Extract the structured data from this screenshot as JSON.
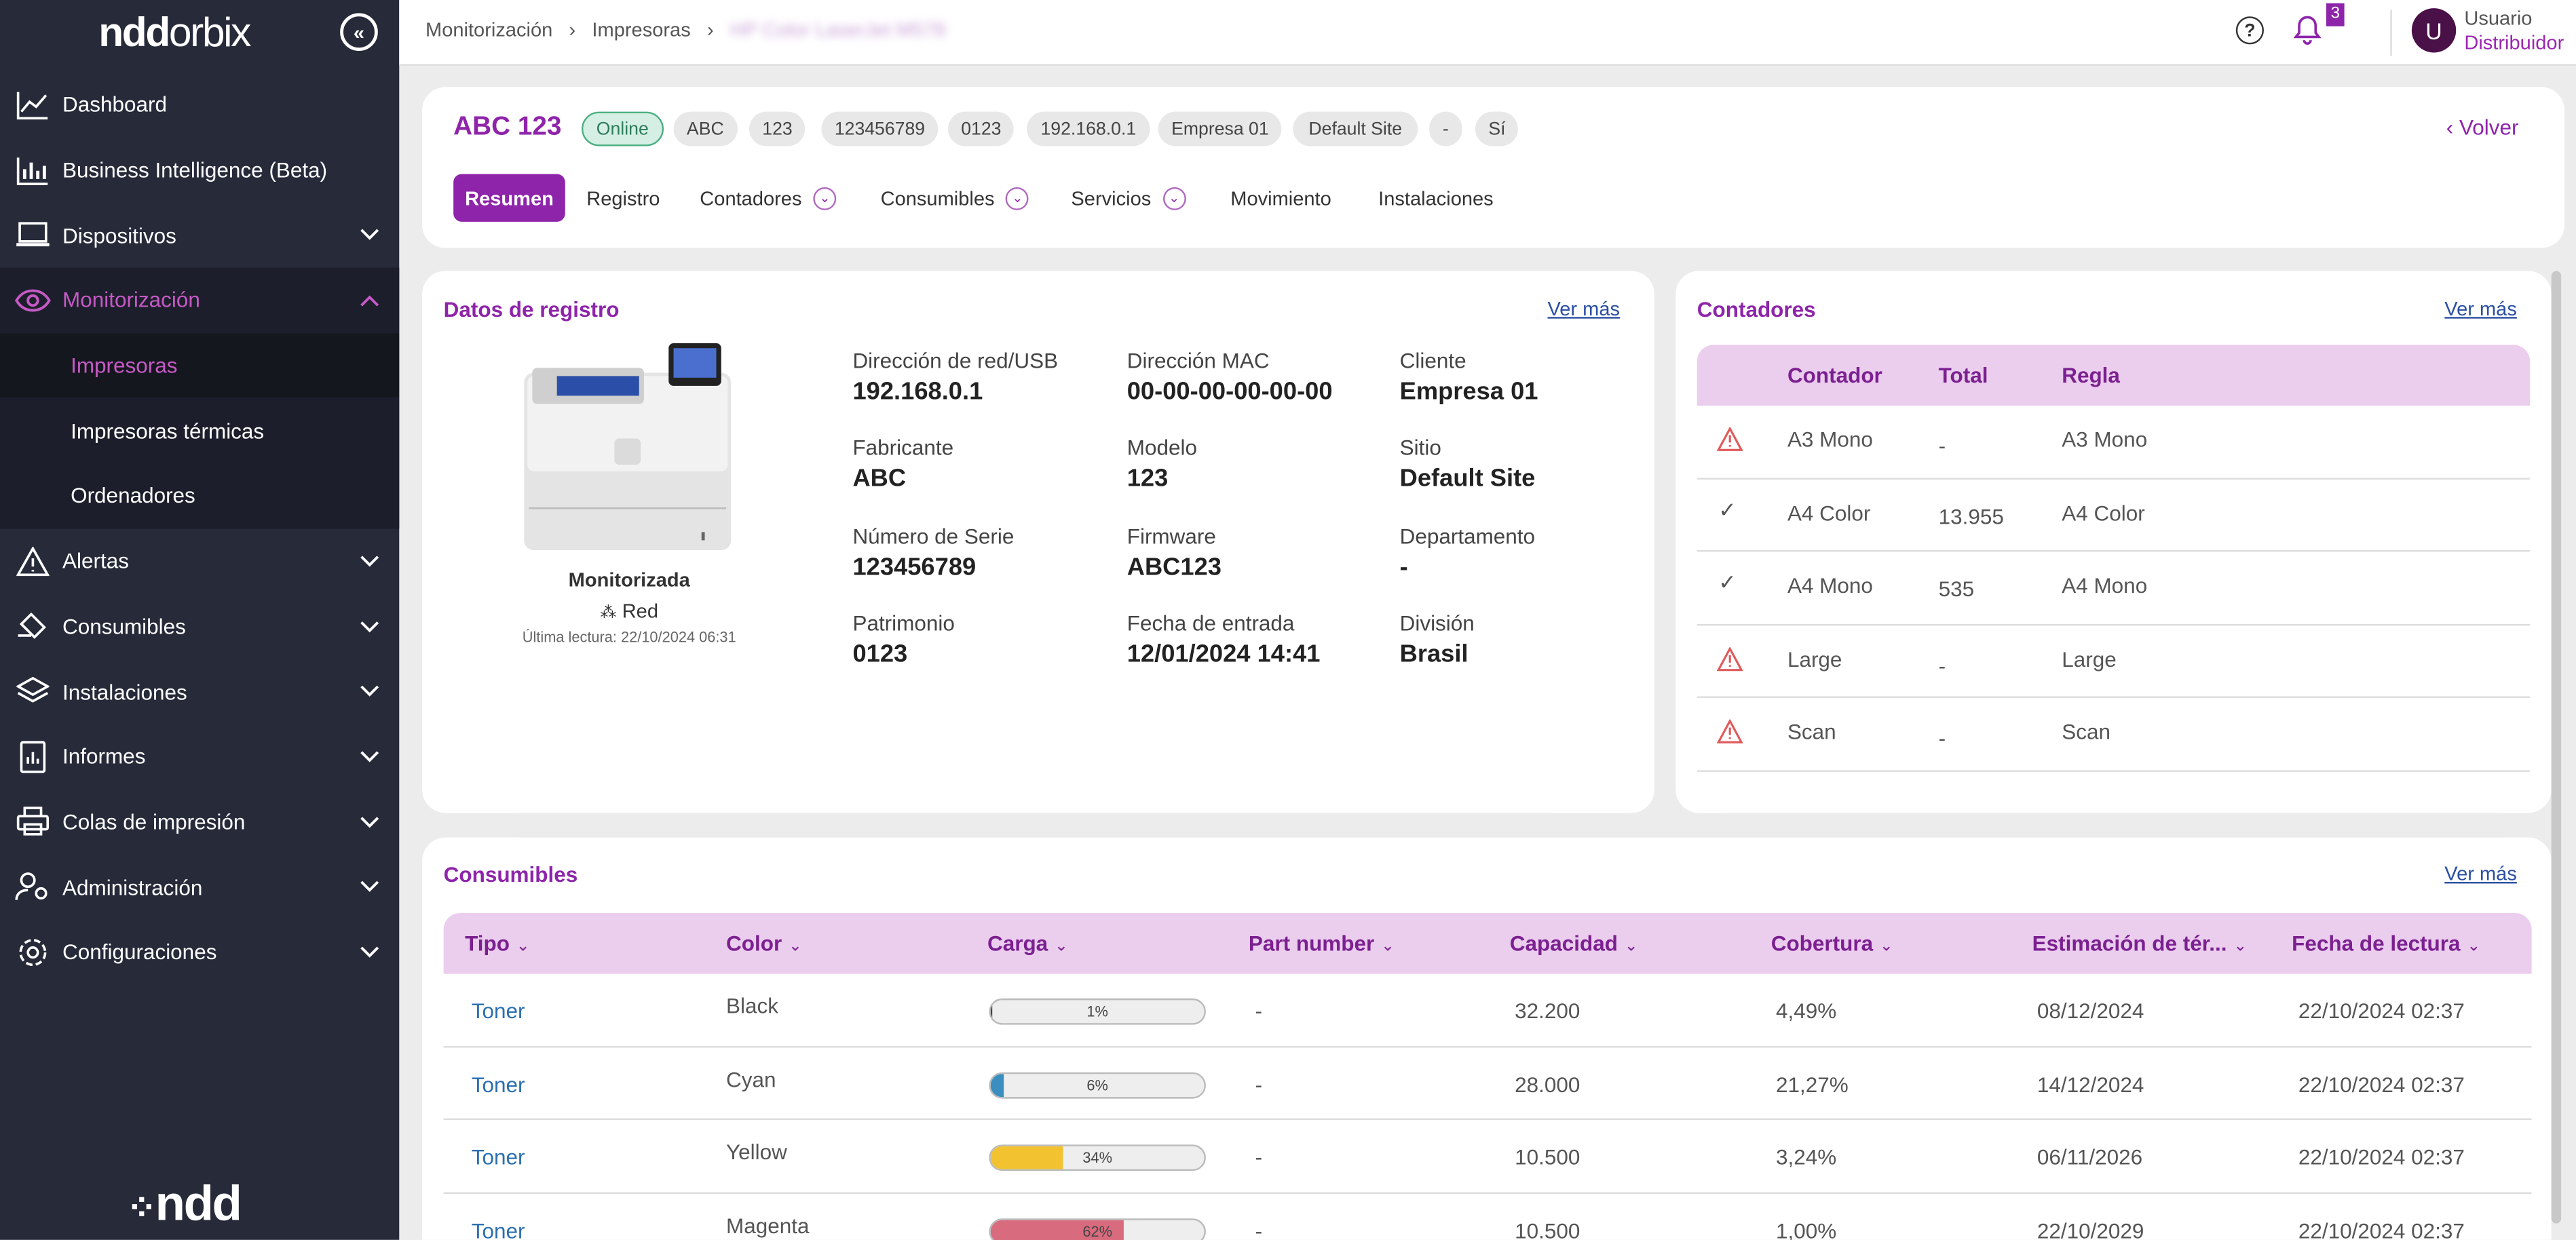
{
  "sidebar": {
    "logo": {
      "ndd": "ndd",
      "orbix": "orbix"
    },
    "items": [
      {
        "label": "Dashboard",
        "icon": "chart-line-icon",
        "chev": false
      },
      {
        "label": "Business Intelligence (Beta)",
        "icon": "bar-chart-icon",
        "chev": false
      },
      {
        "label": "Dispositivos",
        "icon": "laptop-icon",
        "chev": true
      },
      {
        "label": "Monitorización",
        "icon": "eye-icon",
        "chev": true
      }
    ],
    "subitems": [
      "Impresoras",
      "Impresoras térmicas",
      "Ordenadores"
    ],
    "items2": [
      {
        "label": "Alertas",
        "icon": "warning-icon"
      },
      {
        "label": "Consumibles",
        "icon": "bucket-icon"
      },
      {
        "label": "Instalaciones",
        "icon": "layers-icon"
      },
      {
        "label": "Informes",
        "icon": "report-icon"
      },
      {
        "label": "Colas de impresión",
        "icon": "printer-icon"
      },
      {
        "label": "Administración",
        "icon": "user-gear-icon"
      },
      {
        "label": "Configuraciones",
        "icon": "gear-icon"
      }
    ],
    "footer_logo": "ndd"
  },
  "topbar": {
    "breadcrumbs": [
      "Monitorización",
      "Impresoras",
      "HP Color LaserJet M578"
    ],
    "notifications": "3",
    "avatar_letter": "U",
    "user_name": "Usuario",
    "user_role": "Distribuidor"
  },
  "device": {
    "title": "ABC 123",
    "chips": [
      "Online",
      "ABC",
      "123",
      "123456789",
      "0123",
      "192.168.0.1",
      "Empresa 01",
      "Default Site",
      "-",
      "Sí"
    ],
    "volver": "Volver",
    "tabs": [
      "Resumen",
      "Registro",
      "Contadores",
      "Consumibles",
      "Servicios",
      "Movimiento",
      "Instalaciones"
    ]
  },
  "registro": {
    "title": "Datos de registro",
    "ver_mas": "Ver más",
    "status": "Monitorizada",
    "connection": "Red",
    "last_read": "Última lectura: 22/10/2024 06:31",
    "fields": [
      {
        "label": "Dirección de red/USB",
        "value": "192.168.0.1"
      },
      {
        "label": "Dirección MAC",
        "value": "00-00-00-00-00-00"
      },
      {
        "label": "Cliente",
        "value": "Empresa 01"
      },
      {
        "label": "Fabricante",
        "value": "ABC"
      },
      {
        "label": "Modelo",
        "value": "123"
      },
      {
        "label": "Sitio",
        "value": "Default Site"
      },
      {
        "label": "Número de Serie",
        "value": "123456789"
      },
      {
        "label": "Firmware",
        "value": "ABC123"
      },
      {
        "label": "Departamento",
        "value": "-"
      },
      {
        "label": "Patrimonio",
        "value": "0123"
      },
      {
        "label": "Fecha de entrada",
        "value": "12/01/2024 14:41"
      },
      {
        "label": "División",
        "value": "Brasil"
      }
    ]
  },
  "contadores": {
    "title": "Contadores",
    "ver_mas": "Ver más",
    "headers": [
      "Contador",
      "Total",
      "Regla"
    ],
    "rows": [
      {
        "status": "warning",
        "name": "A3 Mono",
        "total": "-",
        "rule": "A3 Mono"
      },
      {
        "status": "ok",
        "name": "A4 Color",
        "total": "13.955",
        "rule": "A4 Color"
      },
      {
        "status": "ok",
        "name": "A4 Mono",
        "total": "535",
        "rule": "A4 Mono"
      },
      {
        "status": "warning",
        "name": "Large",
        "total": "-",
        "rule": "Large"
      },
      {
        "status": "warning",
        "name": "Scan",
        "total": "-",
        "rule": "Scan"
      }
    ],
    "colors": {
      "warning": "#e05a5a",
      "ok": "#e6b800"
    }
  },
  "consumibles": {
    "title": "Consumibles",
    "ver_mas": "Ver más",
    "headers": [
      "Tipo",
      "Color",
      "Carga",
      "Part number",
      "Capacidad",
      "Cobertura",
      "Estimación de tér...",
      "Fecha de lectura"
    ],
    "rows": [
      {
        "tipo": "Toner",
        "color": "Black",
        "carga": 1,
        "carga_label": "1%",
        "fill": "#444444",
        "part": "-",
        "capacidad": "32.200",
        "cobertura": "4,49%",
        "estimacion": "08/12/2024",
        "fecha": "22/10/2024 02:37"
      },
      {
        "tipo": "Toner",
        "color": "Cyan",
        "carga": 6,
        "carga_label": "6%",
        "fill": "#3a8fc0",
        "part": "-",
        "capacidad": "28.000",
        "cobertura": "21,27%",
        "estimacion": "14/12/2024",
        "fecha": "22/10/2024 02:37"
      },
      {
        "tipo": "Toner",
        "color": "Yellow",
        "carga": 34,
        "carga_label": "34%",
        "fill": "#f2c230",
        "part": "-",
        "capacidad": "10.500",
        "cobertura": "3,24%",
        "estimacion": "06/11/2026",
        "fecha": "22/10/2024 02:37"
      },
      {
        "tipo": "Toner",
        "color": "Magenta",
        "carga": 62,
        "carga_label": "62%",
        "fill": "#d96b7e",
        "part": "-",
        "capacidad": "10.500",
        "cobertura": "1,00%",
        "estimacion": "22/10/2029",
        "fecha": "22/10/2024 02:37"
      }
    ]
  }
}
